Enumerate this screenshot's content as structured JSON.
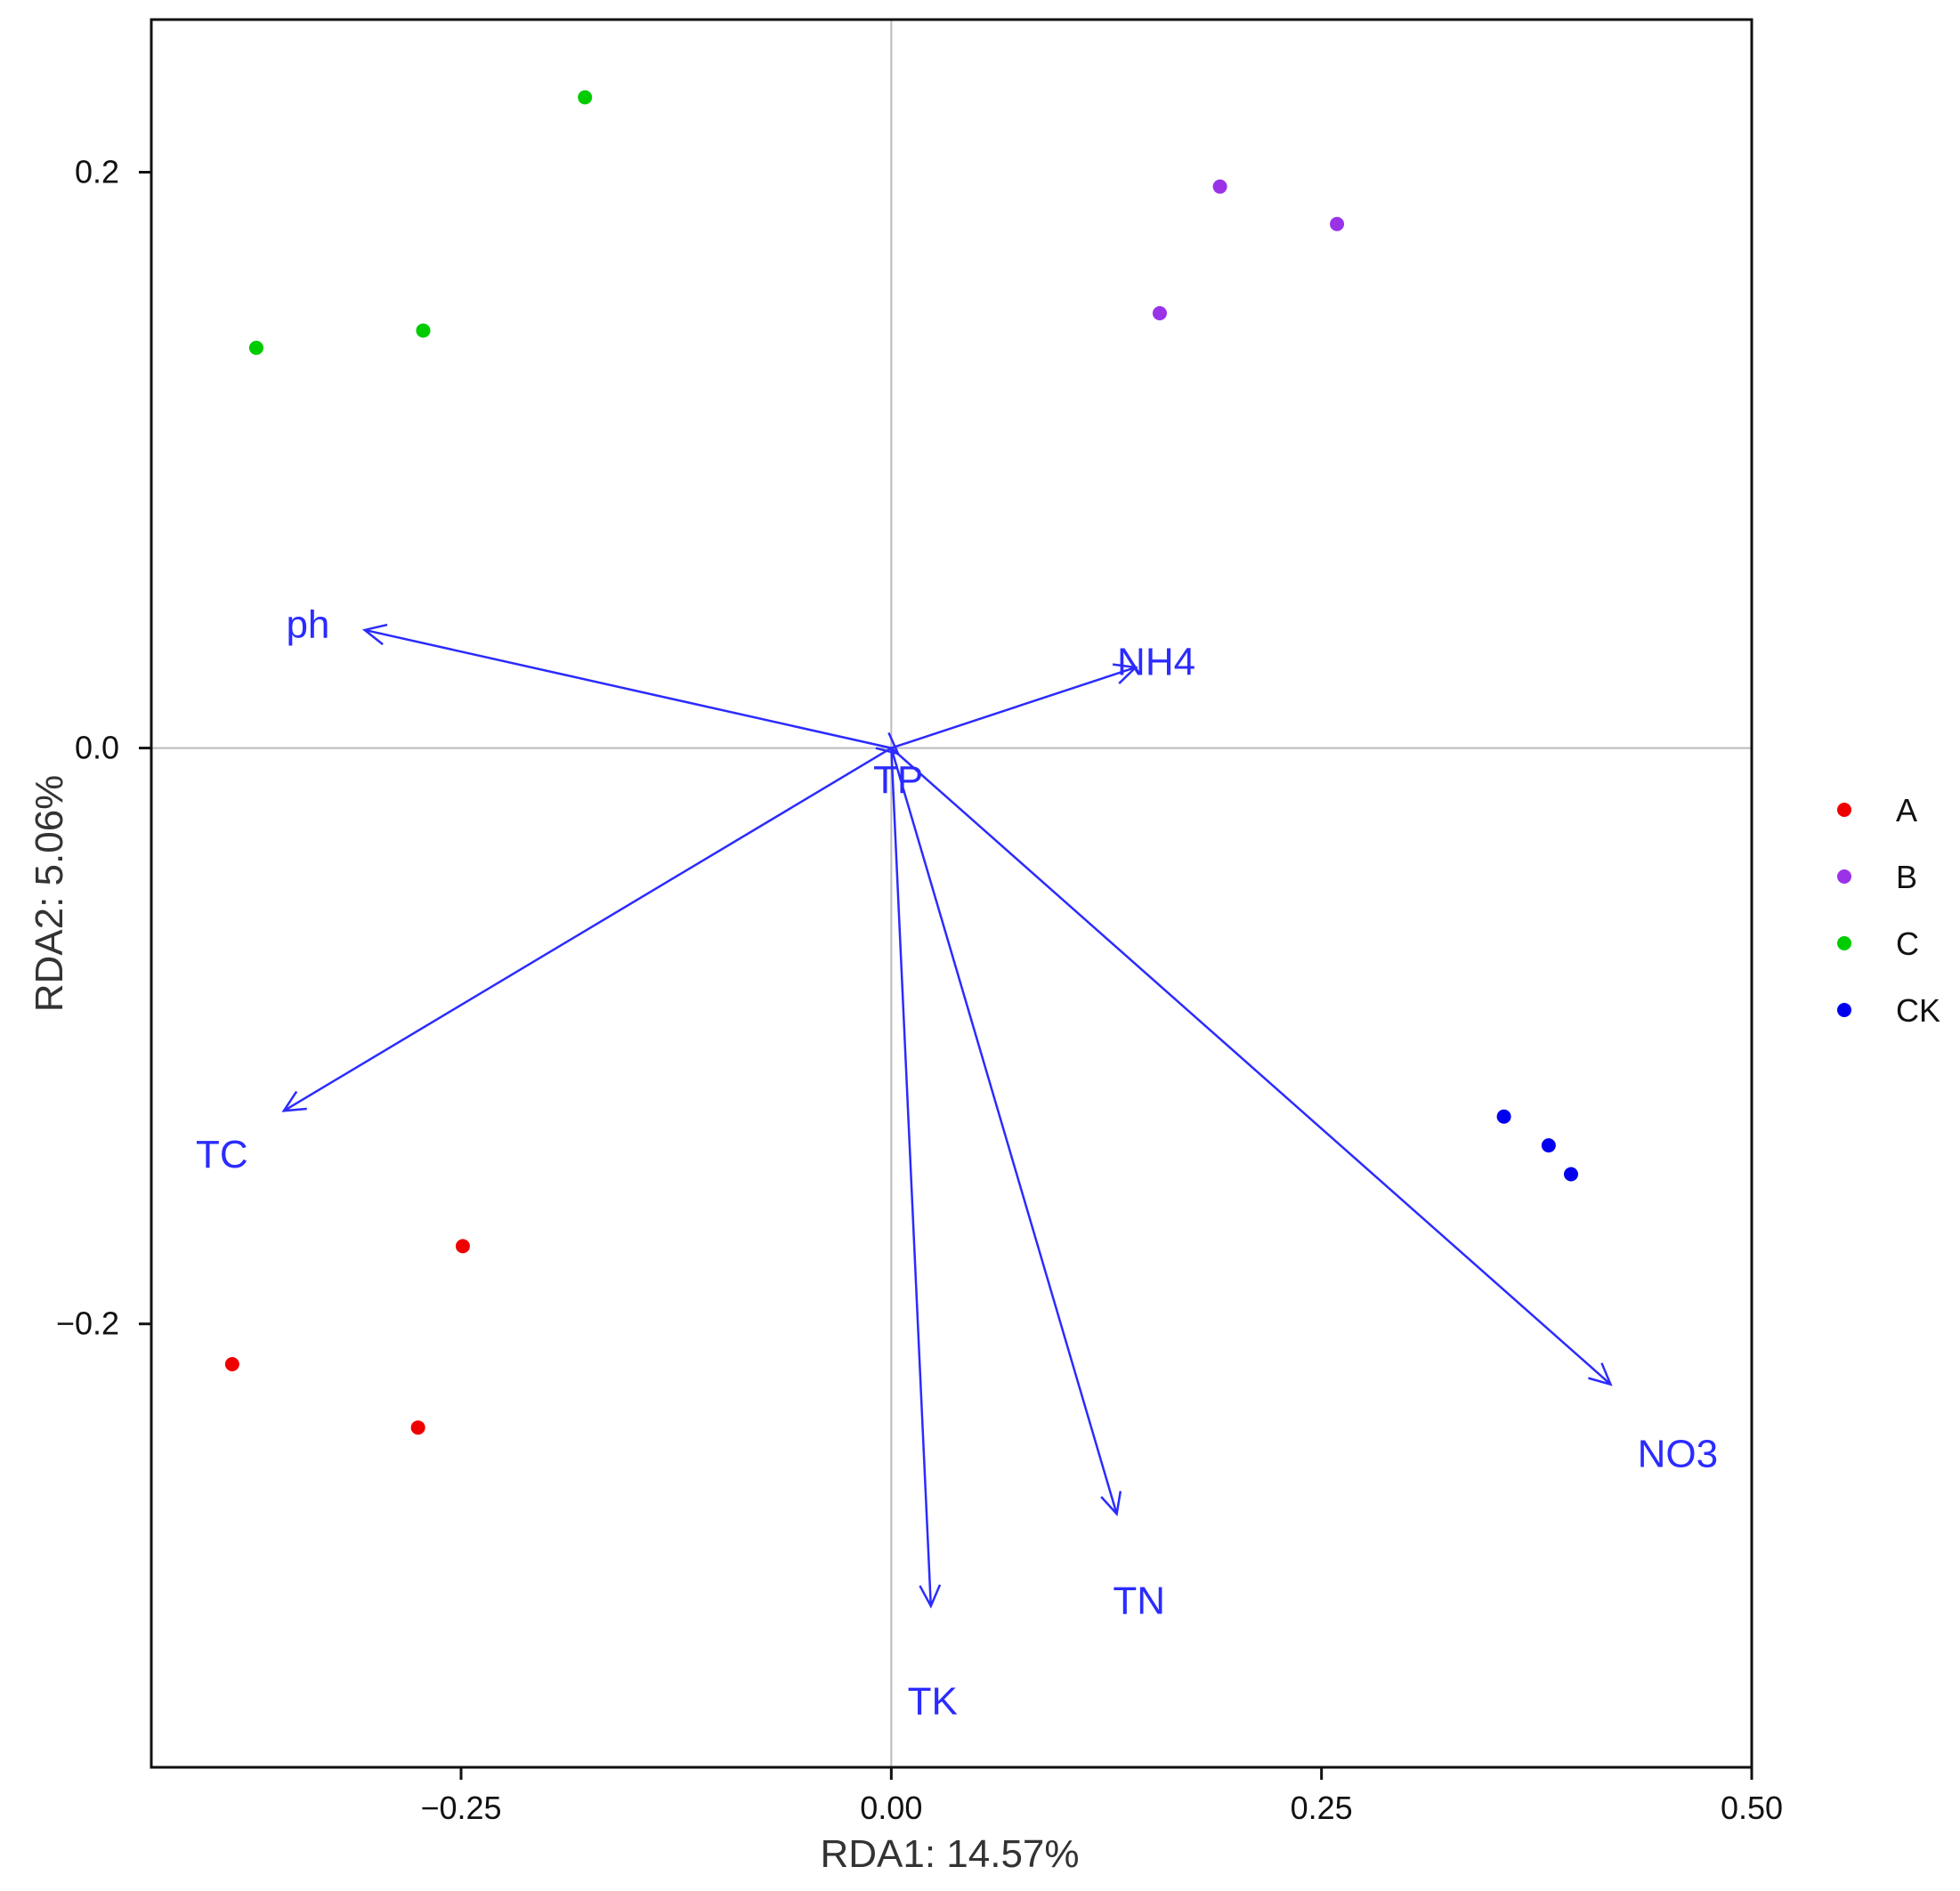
{
  "chart_data": {
    "type": "scatter",
    "subtype": "rda-biplot",
    "title": "",
    "xlabel": "RDA1: 14.57%",
    "ylabel": "RDA2: 5.06%",
    "xlim": [
      -0.43,
      0.5
    ],
    "ylim": [
      -0.354,
      0.253
    ],
    "xticks": [
      {
        "value": -0.25,
        "label": "−0.25"
      },
      {
        "value": 0.0,
        "label": "0.00"
      },
      {
        "value": 0.25,
        "label": "0.25"
      },
      {
        "value": 0.5,
        "label": "0.50"
      }
    ],
    "yticks": [
      {
        "value": -0.2,
        "label": "−0.2"
      },
      {
        "value": 0.0,
        "label": "0.0"
      },
      {
        "value": 0.2,
        "label": "0.2"
      }
    ],
    "reference_lines": {
      "x": 0,
      "y": 0,
      "color": "#bbbbbb"
    },
    "vector_color": "#2b2bff",
    "series": [
      {
        "name": "A",
        "color": "#ee0000",
        "points": [
          [
            -0.249,
            -0.173
          ],
          [
            -0.383,
            -0.214
          ],
          [
            -0.275,
            -0.236
          ]
        ]
      },
      {
        "name": "B",
        "color": "#9a32e8",
        "points": [
          [
            0.191,
            0.195
          ],
          [
            0.259,
            0.182
          ],
          [
            0.156,
            0.151
          ]
        ]
      },
      {
        "name": "C",
        "color": "#00cc00",
        "points": [
          [
            -0.178,
            0.226
          ],
          [
            -0.272,
            0.145
          ],
          [
            -0.369,
            0.139
          ]
        ]
      },
      {
        "name": "CK",
        "color": "#0000ee",
        "points": [
          [
            0.356,
            -0.128
          ],
          [
            0.382,
            -0.138
          ],
          [
            0.395,
            -0.148
          ]
        ]
      }
    ],
    "vectors": [
      {
        "name": "ph",
        "x": -0.306,
        "y": 0.041,
        "label_x": -0.339,
        "label_y": 0.043
      },
      {
        "name": "NH4",
        "x": 0.142,
        "y": 0.028,
        "label_x": 0.154,
        "label_y": 0.03
      },
      {
        "name": "TP",
        "x": 0.004,
        "y": -0.002,
        "label_x": 0.004,
        "label_y": -0.011
      },
      {
        "name": "TC",
        "x": -0.353,
        "y": -0.126,
        "label_x": -0.389,
        "label_y": -0.141
      },
      {
        "name": "TK",
        "x": 0.023,
        "y": -0.298,
        "label_x": 0.024,
        "label_y": -0.331
      },
      {
        "name": "TN",
        "x": 0.131,
        "y": -0.266,
        "label_x": 0.144,
        "label_y": -0.296
      },
      {
        "name": "NO3",
        "x": 0.418,
        "y": -0.221,
        "label_x": 0.457,
        "label_y": -0.245
      }
    ],
    "legend": {
      "position": "right",
      "entries": [
        "A",
        "B",
        "C",
        "CK"
      ]
    }
  }
}
